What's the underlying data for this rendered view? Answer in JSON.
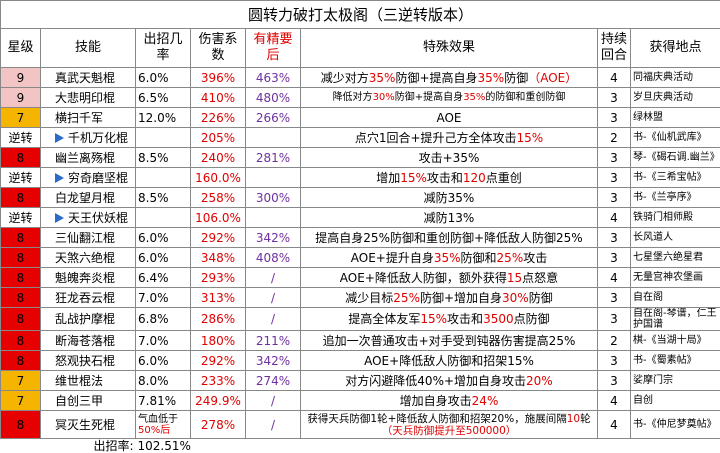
{
  "table": {
    "title": "圆转力破打太极阁（三逆转版本）",
    "header": [
      {
        "text": "星级"
      },
      {
        "text": "技能"
      },
      {
        "text": "出招几率"
      },
      {
        "text": "伤害系数"
      },
      {
        "text": "有精要后",
        "color": "#e00000"
      },
      {
        "text": "特殊效果"
      },
      {
        "text": "持续回合"
      },
      {
        "text": "获得地点"
      }
    ],
    "rows": [
      {
        "star": "9",
        "star_color": "#f2c4c4",
        "skill": "真武天魁棍",
        "rate": "6.0%",
        "damage": "396%",
        "refined": "463%",
        "effect": [
          "减少对方",
          {
            "text": "35%",
            "color": "#e00000"
          },
          "防御+提高自身",
          {
            "text": "35%",
            "color": "#e00000"
          },
          "防御",
          {
            "text": "（AOE）",
            "color": "#e00000"
          }
        ],
        "turns": "4",
        "location": "同福庆典活动"
      },
      {
        "star": "9",
        "star_color": "#f2c4c4",
        "skill": "大悲明印棍",
        "rate": "6.5%",
        "damage": "410%",
        "refined": "480%",
        "small": true,
        "effect": [
          "降低对方",
          {
            "text": "30%",
            "color": "#e00000"
          },
          "防御+提高自身",
          {
            "text": "35%",
            "color": "#e00000"
          },
          "的防御和重创防御"
        ],
        "turns": "3",
        "location": "岁旦庆典活动"
      },
      {
        "star": "7",
        "star_color": "#f5b400",
        "skill": "横扫千军",
        "rate": "12.0%",
        "damage": "226%",
        "refined": "266%",
        "effect": [
          "AOE"
        ],
        "turns": "3",
        "location": "绿林盟"
      },
      {
        "star": "逆转",
        "star_color": "#ffffff",
        "linked": true,
        "skill": "千机万化棍",
        "damage": "205%",
        "effect": [
          "点穴1回合+提升己方全体攻击",
          {
            "text": "15%",
            "color": "#e00000"
          }
        ],
        "turns": "2",
        "location": "书-《仙机武库》"
      },
      {
        "star": "8",
        "star_color": "#e60000",
        "skill": "幽兰离殇棍",
        "rate": "8.5%",
        "damage": "240%",
        "refined": "281%",
        "effect": [
          "攻击+35%"
        ],
        "turns": "3",
        "location": "琴-《碣石调.幽兰》"
      },
      {
        "star": "逆转",
        "star_color": "#ffffff",
        "linked": true,
        "skill": "穷奇磨坚棍",
        "damage": "160.0%",
        "effect": [
          "增加",
          {
            "text": "15%",
            "color": "#e00000"
          },
          "攻击和",
          {
            "text": "120",
            "color": "#e00000"
          },
          "点重创"
        ],
        "turns": "3",
        "location": "书-《三希宝帖》"
      },
      {
        "star": "8",
        "star_color": "#e60000",
        "skill": "白龙望月棍",
        "rate": "8.5%",
        "damage": "258%",
        "refined": "300%",
        "effect": [
          "减防35%"
        ],
        "turns": "3",
        "location": "书-《兰亭序》"
      },
      {
        "star": "逆转",
        "star_color": "#ffffff",
        "linked": true,
        "skill": "天王伏妖棍",
        "damage": "106.0%",
        "effect": [
          "减防13%"
        ],
        "turns": "4",
        "location": "铁骑门相师殿"
      },
      {
        "star": "8",
        "star_color": "#e60000",
        "skill": "三仙翻江棍",
        "rate": "6.0%",
        "damage": "292%",
        "refined": "342%",
        "effect": [
          "提高自身25%防御和重创防御+降低敌人防御25%"
        ],
        "turns": "3",
        "location": "长风道人"
      },
      {
        "star": "8",
        "star_color": "#e60000",
        "skill": "天煞六绝棍",
        "rate": "6.0%",
        "damage": "348%",
        "refined": "408%",
        "effect": [
          "AOE+提升自身",
          {
            "text": "35%",
            "color": "#e00000"
          },
          "防御和",
          {
            "text": "25%",
            "color": "#e00000"
          },
          "攻击"
        ],
        "turns": "3",
        "location": "七星堡六绝星君"
      },
      {
        "star": "8",
        "star_color": "#e60000",
        "skill": "魁魄奔炎棍",
        "rate": "6.4%",
        "damage": "293%",
        "refined": "/",
        "effect": [
          "AOE+降低敌人防御，额外获得",
          {
            "text": "15",
            "color": "#e00000"
          },
          "点怒意"
        ],
        "turns": "4",
        "location": "无量宫神农堡画"
      },
      {
        "star": "8",
        "star_color": "#e60000",
        "skill": "狂龙吞云棍",
        "rate": "7.0%",
        "damage": "313%",
        "refined": "/",
        "effect": [
          "减少目标",
          {
            "text": "25%",
            "color": "#e00000"
          },
          "防御+增加自身",
          {
            "text": "30%",
            "color": "#e00000"
          },
          "防御"
        ],
        "turns": "3",
        "location": "自在阁"
      },
      {
        "star": "8",
        "star_color": "#e60000",
        "skill": "乱战护摩棍",
        "rate": "6.8%",
        "damage": "286%",
        "refined": "/",
        "effect": [
          "提高全体友军",
          {
            "text": "15%",
            "color": "#e00000"
          },
          "攻击和",
          {
            "text": "3500",
            "color": "#e00000"
          },
          "点防御"
        ],
        "turns": "3",
        "location": "自在阁-琴谱，仁王护国谱"
      },
      {
        "star": "8",
        "star_color": "#e60000",
        "skill": "断海苍落棍",
        "rate": "7.0%",
        "damage": "180%",
        "refined": "211%",
        "effect": [
          "追加一次普通攻击+对手受到钝器伤害提高25%"
        ],
        "turns": "2",
        "location": "棋-《当湖十局》"
      },
      {
        "star": "8",
        "star_color": "#e60000",
        "skill": "怒观抉石棍",
        "rate": "6.0%",
        "damage": "292%",
        "refined": "342%",
        "effect": [
          "AOE+降低敌人防御和招架15%"
        ],
        "turns": "3",
        "location": "书-《蜀素帖》"
      },
      {
        "star": "7",
        "star_color": "#f5b400",
        "skill": "维世棍法",
        "rate": "8.0%",
        "damage": "233%",
        "refined": "274%",
        "effect": [
          "对方闪避降低40%+增加自身攻击",
          {
            "text": "20%",
            "color": "#e00000"
          }
        ],
        "turns": "3",
        "location": "娑摩门宗"
      },
      {
        "star": "7",
        "star_color": "#f5b400",
        "skill": "自创三甲",
        "rate": "7.81%",
        "damage": "249.9%",
        "refined": "/",
        "effect": [
          "增加自身攻击",
          {
            "text": "24%",
            "color": "#e00000"
          }
        ],
        "turns": "4",
        "location": "自创"
      },
      {
        "star": "8",
        "star_color": "#e60000",
        "skill": "冥灭生死棍",
        "rate": [
          "气血低于",
          {
            "text": "50%后",
            "color": "#e00000"
          }
        ],
        "damage": "278%",
        "refined": "/",
        "effect": [
          "获得天兵防御1轮+降低敌人防御和招架20%，施展间隔",
          {
            "text": "10",
            "color": "#e00000"
          },
          "轮",
          {
            "text": "（天兵防御提升至500000）",
            "color": "#e00000"
          }
        ],
        "turns": "4",
        "location": "书-《仲尼梦奠帖》"
      }
    ],
    "footer": {
      "label": "出招率:",
      "value": "102.51%"
    }
  }
}
